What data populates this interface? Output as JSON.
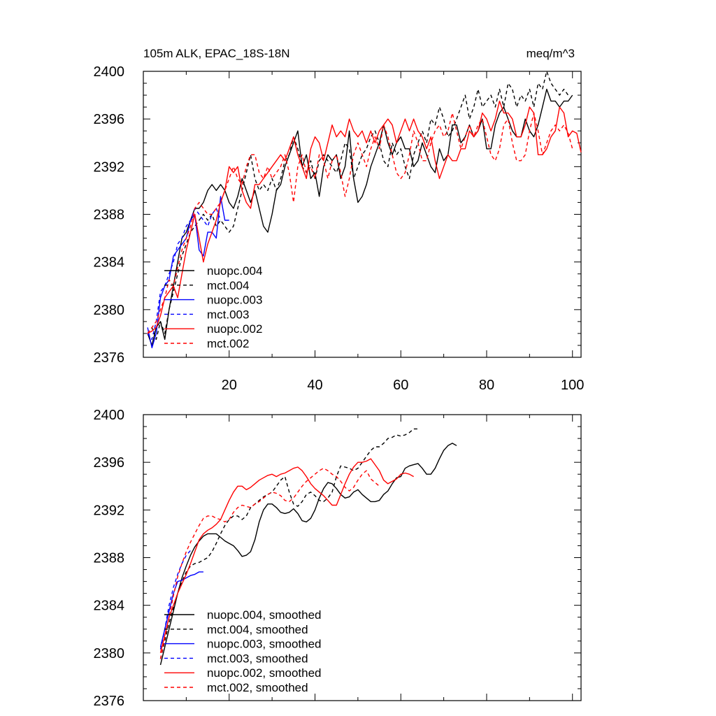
{
  "colors": {
    "black": "#000000",
    "blue": "#0000ff",
    "red": "#ff0000"
  },
  "chart_data": [
    {
      "type": "line",
      "title_left": "105m ALK, EPAC_18S-18N",
      "title_right": "meq/m^3",
      "xlim": [
        0,
        102
      ],
      "ylim": [
        2376,
        2400
      ],
      "x_ticks": [
        20,
        40,
        60,
        80,
        100
      ],
      "x_tick_labels": [
        "20",
        "40",
        "60",
        "80",
        "100"
      ],
      "y_ticks": [
        2376,
        2380,
        2384,
        2388,
        2392,
        2396,
        2400
      ],
      "y_tick_labels": [
        "2376",
        "2380",
        "2384",
        "2388",
        "2392",
        "2396",
        "2400"
      ],
      "legend_position": "bottom-left",
      "series": [
        {
          "name": "nuopc.004",
          "color": "#000000",
          "dash": "solid",
          "x_start": 1,
          "values": [
            2378,
            2377,
            2378.5,
            2379,
            2377.5,
            2380,
            2382,
            2384,
            2386,
            2386.5,
            2387.5,
            2388.5,
            2388.5,
            2389,
            2390,
            2390.5,
            2390,
            2390.5,
            2390,
            2389,
            2388.5,
            2389.5,
            2391,
            2390,
            2389,
            2390,
            2388.5,
            2387,
            2386.5,
            2388,
            2390,
            2390.5,
            2392,
            2393,
            2394,
            2395,
            2392,
            2393,
            2391,
            2391.5,
            2389.5,
            2392,
            2393,
            2392.5,
            2393,
            2391,
            2392,
            2395,
            2391,
            2389,
            2389.5,
            2390.5,
            2392,
            2393,
            2394,
            2395.5,
            2394,
            2393,
            2394,
            2394.5,
            2393.5,
            2393.5,
            2392,
            2392.5,
            2394,
            2393,
            2392,
            2391.5,
            2393.5,
            2392.5,
            2393,
            2395.5,
            2395.5,
            2394,
            2394.5,
            2395.5,
            2394.5,
            2395,
            2396,
            2393.5,
            2393.5,
            2395.5,
            2396.5,
            2397,
            2396,
            2395,
            2394.5,
            2394.5,
            2396,
            2395,
            2394.5,
            2395.5,
            2397,
            2398.5,
            2397.5,
            2397.5,
            2397,
            2397.5,
            2397.5,
            2398
          ]
        },
        {
          "name": "mct.004",
          "color": "#000000",
          "dash": "dashed",
          "x_start": 1,
          "values": [
            2378,
            2378.5,
            2377.5,
            2379,
            2378,
            2380,
            2381.5,
            2383,
            2384.5,
            2385.5,
            2386.5,
            2387,
            2387.5,
            2388,
            2387.5,
            2388,
            2387,
            2387.5,
            2387,
            2386.5,
            2387,
            2388.5,
            2390,
            2391.5,
            2393,
            2391,
            2390,
            2390.5,
            2390,
            2391,
            2390,
            2391,
            2392.5,
            2393,
            2394.5,
            2393.5,
            2392,
            2391.5,
            2392.5,
            2391,
            2392.5,
            2393,
            2392.5,
            2392,
            2391.5,
            2392.5,
            2394,
            2393.5,
            2391,
            2392,
            2393,
            2393.5,
            2394.5,
            2395,
            2394,
            2392.5,
            2392,
            2394,
            2393,
            2393.5,
            2392,
            2391,
            2393,
            2394,
            2395,
            2394,
            2396,
            2395.5,
            2397,
            2396,
            2394.5,
            2395,
            2396,
            2397,
            2398,
            2396,
            2397,
            2398.5,
            2397,
            2397.5,
            2398,
            2397,
            2398.5,
            2397,
            2399,
            2398.5,
            2397,
            2398,
            2397.5,
            2398.5,
            2397,
            2399,
            2398.5,
            2400,
            2399,
            2398.5,
            2398,
            2398.5,
            2398
          ]
        },
        {
          "name": "nuopc.003",
          "color": "#0000ff",
          "dash": "solid",
          "x_start": 1,
          "values": [
            2378.5,
            2376.8,
            2378,
            2381,
            2382,
            2382.5,
            2384.5,
            2385,
            2385.5,
            2386,
            2387.5,
            2388,
            2385,
            2384.5,
            2386.5,
            2386.5,
            2386,
            2389.5,
            2387.5,
            2387.5
          ]
        },
        {
          "name": "mct.003",
          "color": "#0000ff",
          "dash": "dashed",
          "x_start": 1,
          "values": [
            2378,
            2377.5,
            2379,
            2381.5,
            2382,
            2383,
            2384,
            2385.5,
            2386,
            2387,
            2387.5,
            2388.5,
            2388,
            2387.5,
            2387,
            2388,
            2388.5,
            2387.5
          ]
        },
        {
          "name": "nuopc.002",
          "color": "#ff0000",
          "dash": "solid",
          "x_start": 1,
          "values": [
            2378,
            2378.2,
            2378.5,
            2379.5,
            2381,
            2381.5,
            2382,
            2381,
            2383,
            2385,
            2386.5,
            2388,
            2386,
            2384,
            2385.5,
            2386.5,
            2387.5,
            2389,
            2390,
            2392,
            2391.5,
            2392,
            2390,
            2389,
            2388.5,
            2390.5,
            2390.5,
            2391,
            2391.5,
            2392,
            2392.5,
            2393,
            2392.5,
            2393.5,
            2394.5,
            2393,
            2392,
            2391,
            2393.5,
            2394.5,
            2394,
            2392.5,
            2394,
            2395.5,
            2394.5,
            2395,
            2394.5,
            2396,
            2395,
            2394.5,
            2395,
            2394,
            2395,
            2394,
            2395,
            2395.5,
            2396,
            2395.5,
            2394,
            2395,
            2396,
            2395,
            2396,
            2395,
            2394.5,
            2393.5,
            2394.5,
            2392.5,
            2391,
            2392,
            2393,
            2392.5,
            2392.5,
            2393.5,
            2393.5,
            2395,
            2394.5,
            2395,
            2396.5,
            2396,
            2395,
            2396,
            2397.5,
            2396.5,
            2396.5,
            2396,
            2394.5,
            2394.5,
            2395.5,
            2397,
            2396.5,
            2393,
            2393,
            2393.5,
            2394.5,
            2395,
            2397,
            2396.5,
            2394.5,
            2395,
            2394.8,
            2393.2
          ]
        },
        {
          "name": "mct.002",
          "color": "#ff0000",
          "dash": "dashed",
          "x_start": 1,
          "values": [
            2378,
            2378.5,
            2379,
            2380,
            2381,
            2382.5,
            2382,
            2383.5,
            2385,
            2386,
            2387,
            2388.5,
            2389,
            2388.5,
            2388,
            2388,
            2388.5,
            2389,
            2390,
            2391,
            2392,
            2391,
            2390.5,
            2392,
            2393,
            2393,
            2391.5,
            2391,
            2392,
            2391,
            2391.5,
            2392,
            2393,
            2391.5,
            2389,
            2392,
            2393,
            2391.5,
            2392,
            2391,
            2393,
            2392.5,
            2391,
            2392.5,
            2393,
            2391.5,
            2389.5,
            2391,
            2393,
            2394,
            2393,
            2392,
            2393.5,
            2394.5,
            2393.5,
            2395.5,
            2394.5,
            2393,
            2391.5,
            2391,
            2391.5,
            2393,
            2395,
            2394,
            2392.5,
            2392.5,
            2394,
            2395,
            2395.5,
            2394.5,
            2395,
            2396.5,
            2395,
            2393.5,
            2394.5,
            2395.5,
            2394.5,
            2395.5,
            2396,
            2394.5,
            2393,
            2392.5,
            2393.5,
            2395.5,
            2396,
            2394,
            2392.5,
            2392.5,
            2393,
            2395,
            2396.5,
            2395,
            2393,
            2394,
            2395,
            2395.5,
            2395,
            2395.5,
            2394.8,
            2393.5
          ]
        }
      ]
    },
    {
      "type": "line",
      "xlim": [
        0,
        102
      ],
      "ylim": [
        2376,
        2400
      ],
      "x_ticks": [
        20,
        40,
        60,
        80,
        100
      ],
      "y_ticks": [
        2376,
        2380,
        2384,
        2388,
        2392,
        2396,
        2400
      ],
      "y_tick_labels": [
        "2376",
        "2380",
        "2384",
        "2388",
        "2392",
        "2396",
        "2400"
      ],
      "legend_position": "bottom-left",
      "series": [
        {
          "name": "nuopc.004, smoothed",
          "color": "#000000",
          "dash": "solid",
          "x_start": 4,
          "values": [
            2379,
            2380.5,
            2382,
            2383.5,
            2385,
            2386.3,
            2387.3,
            2388.2,
            2388.9,
            2389.4,
            2389.8,
            2390,
            2390,
            2390,
            2389.7,
            2389.4,
            2389.2,
            2389,
            2388.6,
            2388.1,
            2388.2,
            2388.5,
            2389.5,
            2391,
            2392,
            2392.5,
            2392.5,
            2392.2,
            2391.8,
            2391.7,
            2391.8,
            2392.1,
            2391.7,
            2391.1,
            2391,
            2391.3,
            2392,
            2393,
            2393.8,
            2394.3,
            2394.2,
            2393.8,
            2393.3,
            2393,
            2393.1,
            2393.5,
            2393.7,
            2393.3,
            2393,
            2392.7,
            2392.7,
            2392.8,
            2393.3,
            2393.6,
            2394.2,
            2394.7,
            2394.8,
            2395.5,
            2395.7,
            2395.8,
            2395.9,
            2395.5,
            2395,
            2395,
            2395.5,
            2396.3,
            2397,
            2397.4,
            2397.6,
            2397.4
          ]
        },
        {
          "name": "mct.004, smoothed",
          "color": "#000000",
          "dash": "dashed",
          "x_start": 4,
          "values": [
            2379.5,
            2381,
            2382.5,
            2383.8,
            2385,
            2386,
            2386.8,
            2387.3,
            2387.5,
            2387.6,
            2387.8,
            2388,
            2388.5,
            2389.2,
            2390,
            2390.7,
            2391.2,
            2391.5,
            2391.5,
            2391.2,
            2391.5,
            2392.2,
            2392.5,
            2392.8,
            2393.1,
            2393.3,
            2393.5,
            2394,
            2394.5,
            2394.8,
            2393.5,
            2392.5,
            2392.3,
            2392.7,
            2393.3,
            2393.5,
            2393.2,
            2392.8,
            2392.7,
            2393,
            2393.5,
            2394.8,
            2395.7,
            2395.6,
            2395.5,
            2395.3,
            2395.5,
            2396,
            2396.5,
            2397,
            2397.3,
            2397.3,
            2397.6,
            2398,
            2398.1,
            2398.3,
            2398.2,
            2398.3,
            2398.5,
            2398.8,
            2398.8
          ]
        },
        {
          "name": "nuopc.003, smoothed",
          "color": "#0000ff",
          "dash": "solid",
          "x_start": 4,
          "values": [
            2380.5,
            2382,
            2383.5,
            2385,
            2386,
            2386.1,
            2386.3,
            2386.5,
            2386.6,
            2386.8,
            2386.8
          ]
        },
        {
          "name": "mct.003, smoothed",
          "color": "#0000ff",
          "dash": "dashed",
          "x_start": 4,
          "values": [
            2380.3,
            2382,
            2384,
            2385.5,
            2386.6,
            2387.5,
            2388.2,
            2388.6
          ]
        },
        {
          "name": "nuopc.002, smoothed",
          "color": "#ff0000",
          "dash": "solid",
          "x_start": 4,
          "values": [
            2380,
            2381.5,
            2383,
            2384,
            2385,
            2385.8,
            2386.6,
            2387.5,
            2388.5,
            2389.5,
            2390,
            2390.3,
            2390.5,
            2390.8,
            2391.2,
            2392,
            2392.8,
            2393.5,
            2394,
            2394,
            2393.7,
            2393.9,
            2394.2,
            2394.5,
            2394.7,
            2394.9,
            2395,
            2394.8,
            2395,
            2395.1,
            2395.3,
            2395.5,
            2395.6,
            2395.3,
            2394.8,
            2394.2,
            2393.8,
            2393.5,
            2393.2,
            2392.8,
            2392.4,
            2392.4,
            2393.3,
            2394.2,
            2395,
            2395.6,
            2396,
            2396,
            2396.1,
            2396.3,
            2395.8,
            2395.3,
            2394.5,
            2394.2,
            2394.4,
            2394.6,
            2395,
            2395.1,
            2395,
            2394.8
          ]
        },
        {
          "name": "mct.002, smoothed",
          "color": "#ff0000",
          "dash": "dashed",
          "x_start": 4,
          "values": [
            2379.5,
            2381.3,
            2383,
            2384.8,
            2386.4,
            2387.5,
            2388.5,
            2389.3,
            2390,
            2390.7,
            2391.3,
            2391.5,
            2391.5,
            2391.3,
            2391.2,
            2391,
            2391.2,
            2391.8,
            2392.2,
            2392.4,
            2392.3,
            2392.2,
            2392.5,
            2392.7,
            2393,
            2393.3,
            2393.5,
            2393.4,
            2393.2,
            2392.8,
            2392.7,
            2393,
            2393.5,
            2394,
            2394.4,
            2394.7,
            2395,
            2395.3,
            2395.5,
            2395.3,
            2395,
            2394.8,
            2394.4,
            2393.9,
            2393.6,
            2393.9,
            2394.5,
            2395,
            2395.3,
            2394.6,
            2394.3,
            2394
          ]
        }
      ]
    }
  ]
}
